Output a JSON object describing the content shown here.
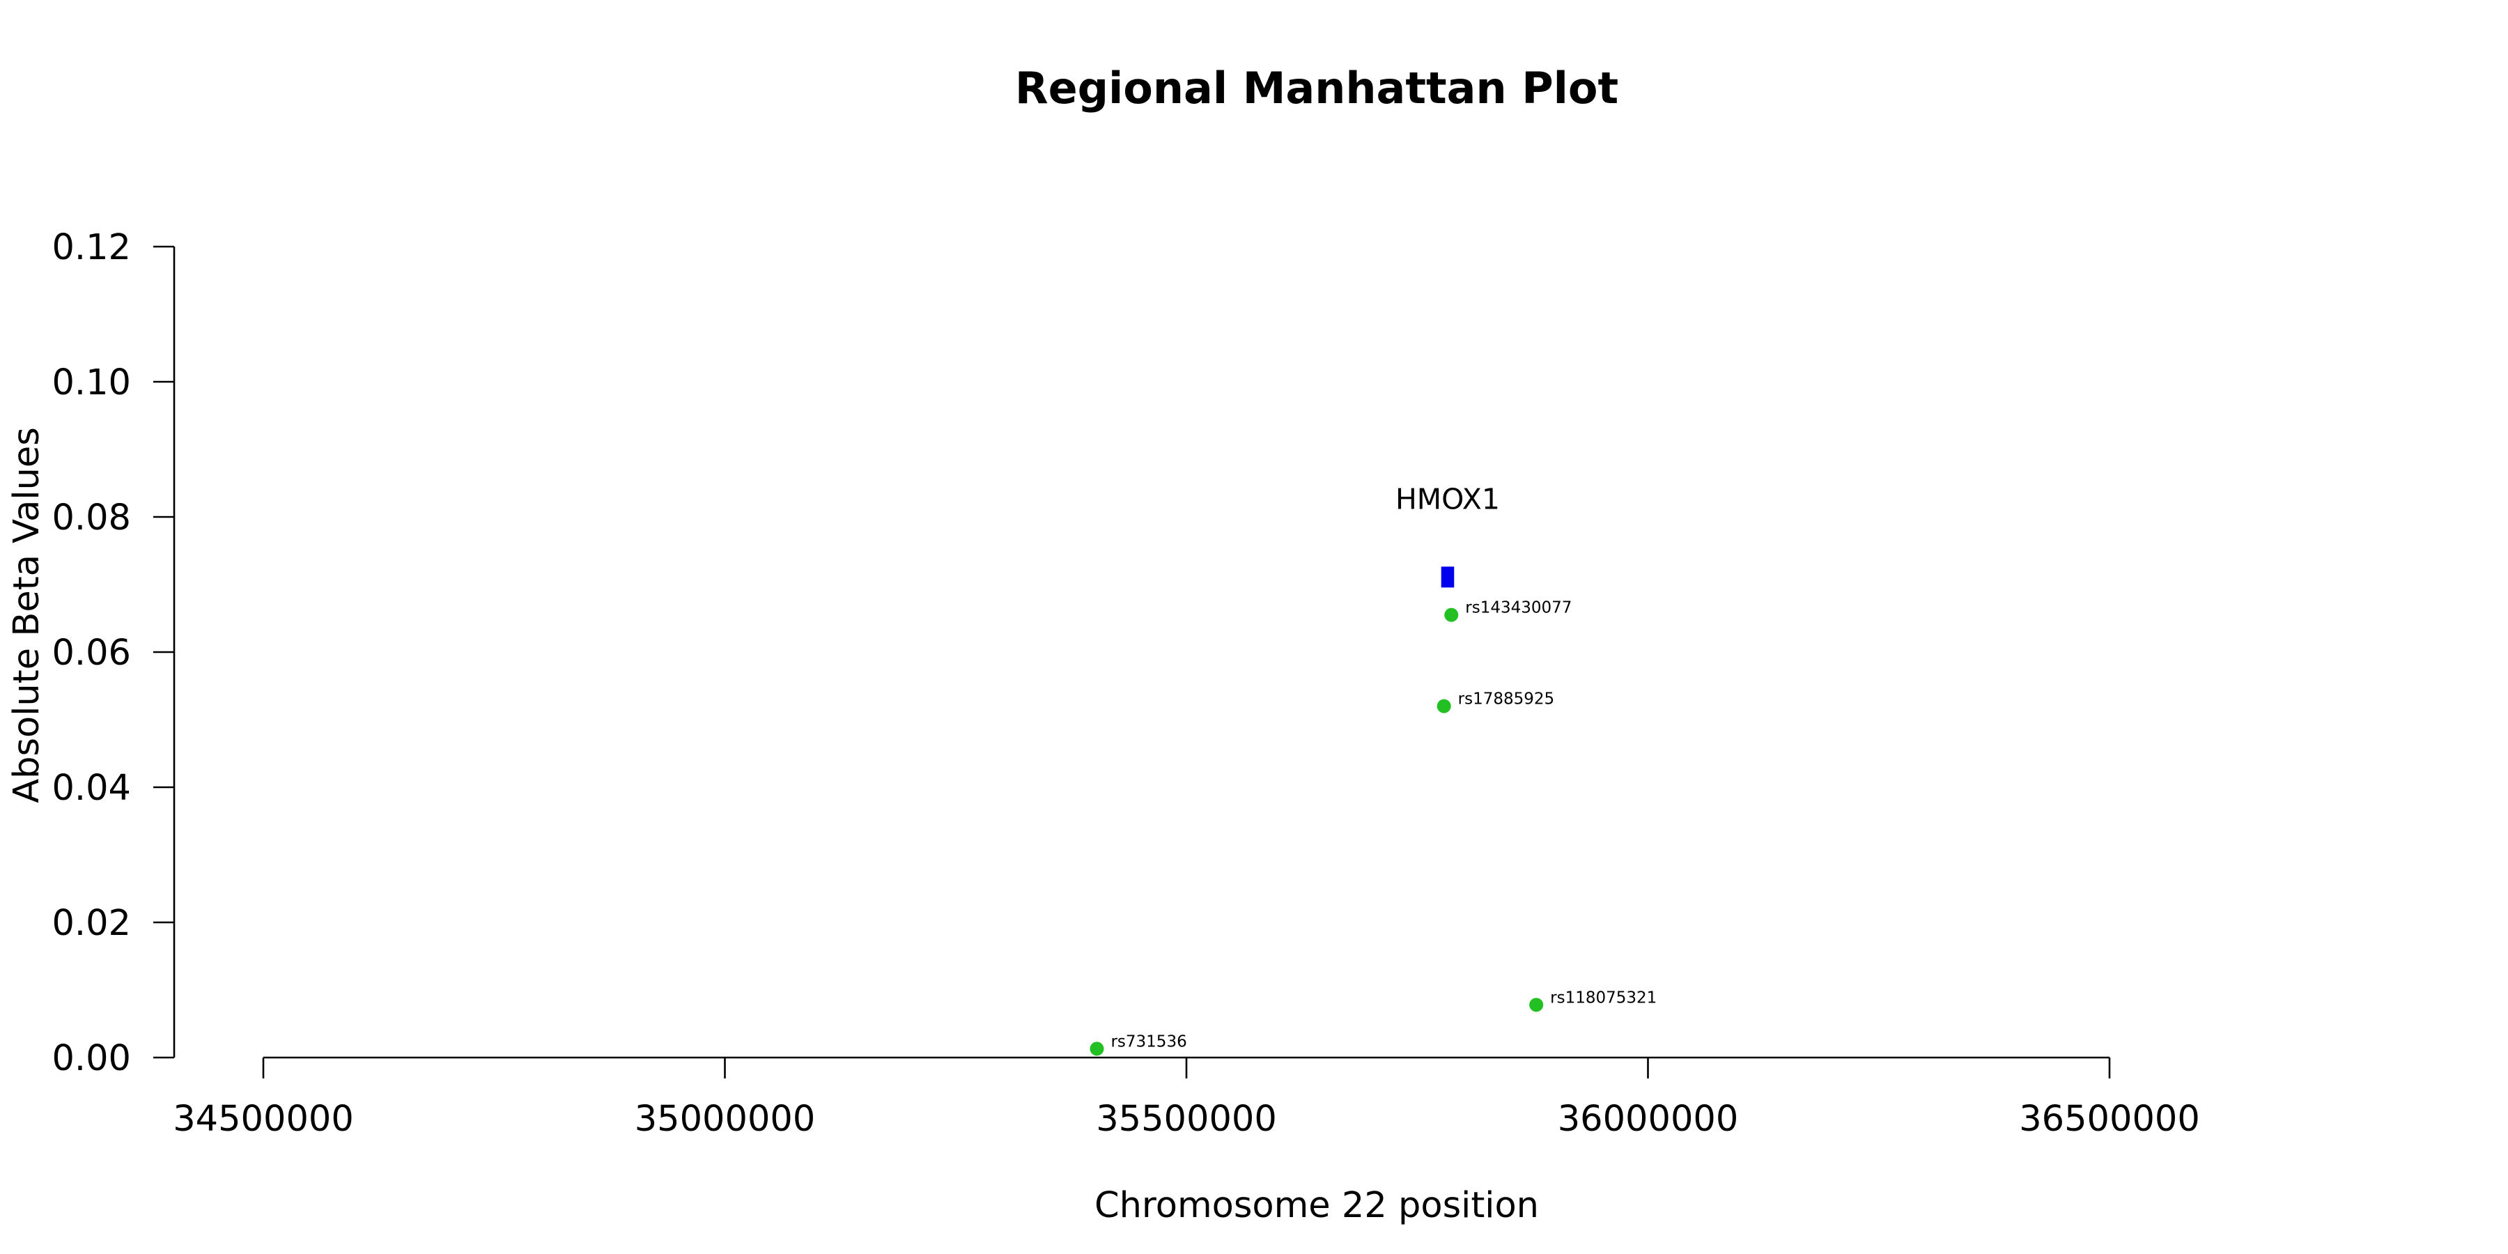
{
  "chart_data": {
    "type": "scatter",
    "title": "Regional Manhattan Plot",
    "xlabel": "Chromosome 22 position",
    "ylabel": "Absolute Beta Values",
    "xlim": [
      34500000,
      36500000
    ],
    "ylim": [
      0,
      0.12
    ],
    "x_ticks": [
      34500000,
      35000000,
      35500000,
      36000000,
      36500000
    ],
    "y_ticks": [
      "0.00",
      "0.02",
      "0.04",
      "0.06",
      "0.08",
      "0.10",
      "0.12"
    ],
    "grid": false,
    "point_color": "#22c022",
    "gene_color": "#0000ee",
    "points": [
      {
        "label": "rs731536",
        "x": 35403000,
        "y": 0.0013
      },
      {
        "label": "rs143430077",
        "x": 35787000,
        "y": 0.0655
      },
      {
        "label": "rs17885925",
        "x": 35779000,
        "y": 0.052
      },
      {
        "label": "rs118075321",
        "x": 35879000,
        "y": 0.0078
      }
    ],
    "genes": [
      {
        "name": "HMOX1",
        "start": 35776000,
        "end": 35790000,
        "y": 0.0711
      }
    ]
  }
}
